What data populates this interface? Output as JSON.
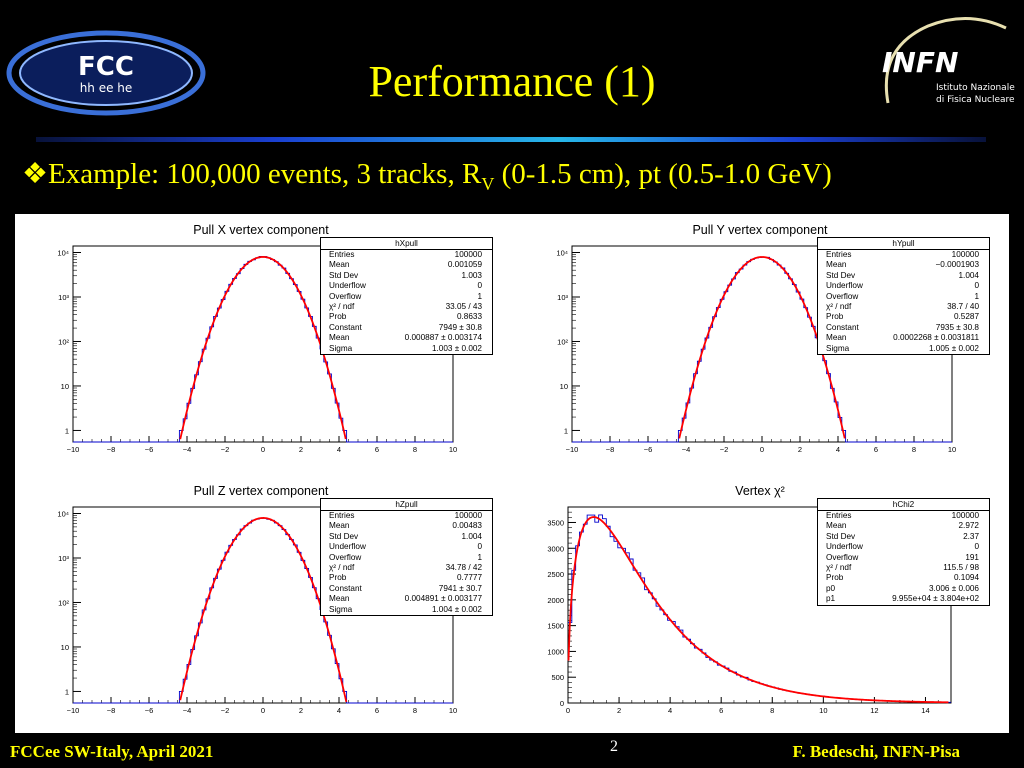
{
  "slide": {
    "title": "Performance (1)",
    "subtitle_prefix": "Example: 100,000 events, 3 tracks, R",
    "subtitle_sub": "V",
    "subtitle_suffix": " (0-1.5 cm), pt (0.5-1.0 GeV)",
    "footer_left": "FCCee SW-Italy, April 2021",
    "page_number": "2",
    "footer_right": "F. Bedeschi, INFN-Pisa",
    "bullet_icon": "diamond-bullet-icon",
    "colors": {
      "background": "#000000",
      "title": "#ffff00",
      "histogram": "#0000cc",
      "fit": "#ff0000"
    }
  },
  "logos": {
    "fcc": {
      "text": "FCC",
      "subtext": "hh ee he"
    },
    "infn": {
      "text": "INFN",
      "line1": "Istituto Nazionale",
      "line2": "di Fisica Nucleare"
    }
  },
  "chart_data": [
    {
      "type": "histogram",
      "title": "Pull X vertex component",
      "xlim": [
        -10,
        10
      ],
      "log_y": true,
      "x_ticks": [
        "−10",
        "−8",
        "−6",
        "−4",
        "−2",
        "0",
        "2",
        "4",
        "6",
        "8",
        "10"
      ],
      "y_ticks": [
        {
          "v": 1,
          "label": "1"
        },
        {
          "v": 10,
          "label": "10"
        },
        {
          "v": 100,
          "label": "10²"
        },
        {
          "v": 1000,
          "label": "10³"
        },
        {
          "v": 10000,
          "label": "10⁴"
        }
      ],
      "fit": {
        "type": "gaus",
        "constant": 7949,
        "mean": 0.000887,
        "sigma": 1.003
      },
      "stats_box": {
        "name": "hXpull",
        "rows": [
          [
            "Entries",
            "100000"
          ],
          [
            "Mean",
            "0.001059"
          ],
          [
            "Std Dev",
            "1.003"
          ],
          [
            "Underflow",
            "0"
          ],
          [
            "Overflow",
            "1"
          ],
          [
            "χ² / ndf",
            "33.05 / 43"
          ],
          [
            "Prob",
            "0.8633"
          ],
          [
            "Constant",
            "7949 ± 30.8"
          ],
          [
            "Mean",
            "0.000887 ± 0.003174"
          ],
          [
            "Sigma",
            "1.003 ± 0.002"
          ]
        ]
      }
    },
    {
      "type": "histogram",
      "title": "Pull Y vertex component",
      "xlim": [
        -10,
        10
      ],
      "log_y": true,
      "x_ticks": [
        "−10",
        "−8",
        "−6",
        "−4",
        "−2",
        "0",
        "2",
        "4",
        "6",
        "8",
        "10"
      ],
      "y_ticks": [
        {
          "v": 1,
          "label": "1"
        },
        {
          "v": 10,
          "label": "10"
        },
        {
          "v": 100,
          "label": "10²"
        },
        {
          "v": 1000,
          "label": "10³"
        },
        {
          "v": 10000,
          "label": "10⁴"
        }
      ],
      "fit": {
        "type": "gaus",
        "constant": 7935,
        "mean": 0.0002268,
        "sigma": 1.005
      },
      "stats_box": {
        "name": "hYpull",
        "rows": [
          [
            "Entries",
            "100000"
          ],
          [
            "Mean",
            "−0.0001903"
          ],
          [
            "Std Dev",
            "1.004"
          ],
          [
            "Underflow",
            "0"
          ],
          [
            "Overflow",
            "1"
          ],
          [
            "χ² / ndf",
            "38.7 / 40"
          ],
          [
            "Prob",
            "0.5287"
          ],
          [
            "Constant",
            "7935 ± 30.8"
          ],
          [
            "Mean",
            "0.0002268 ± 0.0031811"
          ],
          [
            "Sigma",
            "1.005 ± 0.002"
          ]
        ]
      }
    },
    {
      "type": "histogram",
      "title": "Pull Z vertex component",
      "xlim": [
        -10,
        10
      ],
      "log_y": true,
      "x_ticks": [
        "−10",
        "−8",
        "−6",
        "−4",
        "−2",
        "0",
        "2",
        "4",
        "6",
        "8",
        "10"
      ],
      "y_ticks": [
        {
          "v": 1,
          "label": "1"
        },
        {
          "v": 10,
          "label": "10"
        },
        {
          "v": 100,
          "label": "10²"
        },
        {
          "v": 1000,
          "label": "10³"
        },
        {
          "v": 10000,
          "label": "10⁴"
        }
      ],
      "fit": {
        "type": "gaus",
        "constant": 7941,
        "mean": 0.004891,
        "sigma": 1.004
      },
      "stats_box": {
        "name": "hZpull",
        "rows": [
          [
            "Entries",
            "100000"
          ],
          [
            "Mean",
            "0.00483"
          ],
          [
            "Std Dev",
            "1.004"
          ],
          [
            "Underflow",
            "0"
          ],
          [
            "Overflow",
            "1"
          ],
          [
            "χ² / ndf",
            "34.78 / 42"
          ],
          [
            "Prob",
            "0.7777"
          ],
          [
            "Constant",
            "7941 ± 30.7"
          ],
          [
            "Mean",
            "0.004891 ± 0.003177"
          ],
          [
            "Sigma",
            "1.004 ± 0.002"
          ]
        ]
      }
    },
    {
      "type": "histogram",
      "title": "Vertex χ²",
      "xlim": [
        0,
        15
      ],
      "log_y": false,
      "ylim": [
        0,
        3800
      ],
      "x_ticks": [
        "0",
        "2",
        "4",
        "6",
        "8",
        "10",
        "12",
        "14"
      ],
      "y_ticks": [
        {
          "v": 0,
          "label": "0"
        },
        {
          "v": 500,
          "label": "500"
        },
        {
          "v": 1000,
          "label": "1000"
        },
        {
          "v": 1500,
          "label": "1500"
        },
        {
          "v": 2000,
          "label": "2000"
        },
        {
          "v": 2500,
          "label": "2500"
        },
        {
          "v": 3000,
          "label": "3000"
        },
        {
          "v": 3500,
          "label": "3500"
        }
      ],
      "fit": {
        "type": "chi2",
        "p0": 3.006,
        "p1": 99550
      },
      "stats_box": {
        "name": "hChi2",
        "rows": [
          [
            "Entries",
            "100000"
          ],
          [
            "Mean",
            "2.972"
          ],
          [
            "Std Dev",
            "2.37"
          ],
          [
            "Underflow",
            "0"
          ],
          [
            "Overflow",
            "191"
          ],
          [
            "χ² / ndf",
            "115.5 / 98"
          ],
          [
            "Prob",
            "0.1094"
          ],
          [
            "p0",
            "3.006 ± 0.006"
          ],
          [
            "p1",
            "9.955e+04 ± 3.804e+02"
          ]
        ]
      }
    }
  ]
}
